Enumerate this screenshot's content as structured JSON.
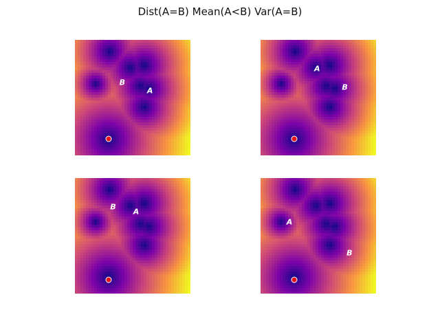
{
  "figure": {
    "title": "Dist(A=B) Mean(A<B) Var(A=B)"
  },
  "chart_data": {
    "type": "heatmap",
    "colormap": "plasma",
    "colors": {
      "low": "#0d0887",
      "mid": "#cc4778",
      "high": "#f0f921",
      "marker": "#e8141c",
      "label": "#ffffff"
    },
    "axes_visible": false,
    "extent": [
      0,
      1,
      0,
      1
    ],
    "wells": [
      {
        "x": 0.29,
        "y": 0.14,
        "depth": 1.0
      },
      {
        "x": 0.3,
        "y": 0.9,
        "depth": 0.55
      },
      {
        "x": 0.48,
        "y": 0.76,
        "depth": 0.55
      },
      {
        "x": 0.6,
        "y": 0.78,
        "depth": 0.6
      },
      {
        "x": 0.57,
        "y": 0.6,
        "depth": 0.55
      },
      {
        "x": 0.64,
        "y": 0.58,
        "depth": 0.55
      },
      {
        "x": 0.6,
        "y": 0.42,
        "depth": 0.55
      },
      {
        "x": 0.18,
        "y": 0.62,
        "depth": 0.25
      }
    ],
    "panels": [
      {
        "marker": {
          "x": 0.29,
          "y": 0.14
        },
        "points": [
          {
            "label": "B",
            "x": 0.41,
            "y": 0.63
          },
          {
            "label": "A",
            "x": 0.65,
            "y": 0.56
          }
        ]
      },
      {
        "marker": {
          "x": 0.29,
          "y": 0.14
        },
        "points": [
          {
            "label": "A",
            "x": 0.49,
            "y": 0.75
          },
          {
            "label": "B",
            "x": 0.73,
            "y": 0.59
          }
        ]
      },
      {
        "marker": {
          "x": 0.29,
          "y": 0.12
        },
        "points": [
          {
            "label": "B",
            "x": 0.33,
            "y": 0.75
          },
          {
            "label": "A",
            "x": 0.53,
            "y": 0.71
          }
        ]
      },
      {
        "marker": {
          "x": 0.29,
          "y": 0.12
        },
        "points": [
          {
            "label": "A",
            "x": 0.25,
            "y": 0.62
          },
          {
            "label": "B",
            "x": 0.77,
            "y": 0.35
          }
        ]
      }
    ]
  }
}
